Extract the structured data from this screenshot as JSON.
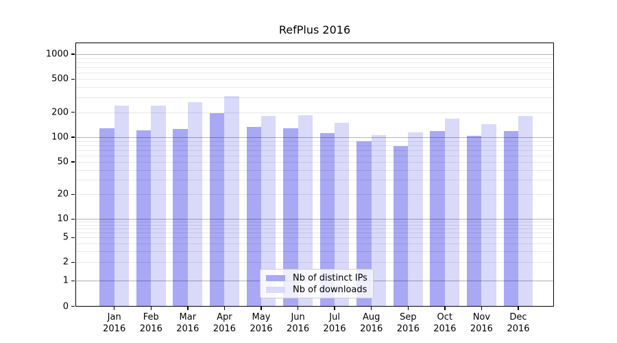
{
  "title": "RefPlus 2016",
  "chart_data": {
    "type": "bar",
    "title": "RefPlus 2016",
    "categories": [
      "Jan 2016",
      "Feb 2016",
      "Mar 2016",
      "Apr 2016",
      "May 2016",
      "Jun 2016",
      "Jul 2016",
      "Aug 2016",
      "Sep 2016",
      "Oct 2016",
      "Nov 2016",
      "Dec 2016"
    ],
    "series": [
      {
        "name": "Nb of distinct IPs",
        "color": "#a8a8f5",
        "values": [
          128,
          121,
          125,
          195,
          133,
          127,
          112,
          90,
          78,
          118,
          103,
          119
        ]
      },
      {
        "name": "Nb of downloads",
        "color": "#d9d9fa",
        "values": [
          238,
          238,
          264,
          313,
          180,
          184,
          149,
          106,
          114,
          166,
          144,
          180
        ]
      }
    ],
    "xlabel": "",
    "ylabel": "",
    "yscale": "symlog",
    "yticks": [
      0,
      1,
      2,
      5,
      10,
      20,
      50,
      100,
      200,
      500,
      1000
    ],
    "ylim": [
      0,
      1400
    ],
    "grid": "horizontal",
    "legend_position": "lower-center"
  },
  "colors": {
    "major_gridline": "rgba(0,0,0,0.30)",
    "minor_gridline": "rgba(0,0,0,0.09)",
    "axis": "#000000",
    "background": "#ffffff"
  }
}
